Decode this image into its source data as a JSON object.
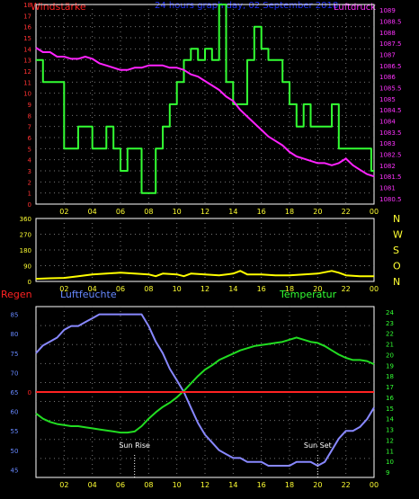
{
  "header": {
    "left_label": "Windstärke",
    "center_title": "24 hours graph day, 02 September 2018",
    "right_label": "Luftdruck"
  },
  "panel3_labels": {
    "regen": "Regen",
    "luftfeuchte": "Luftfeuchte",
    "temperatur": "Temperatur",
    "sun_rise": "Sun Rise",
    "sun_set": "Sun Set"
  },
  "colors": {
    "wind": "#33ff33",
    "pressure": "#ff22ff",
    "direction": "#ffff00",
    "humidity": "#8888ff",
    "temperature": "#22dd22",
    "rain": "#ff2222",
    "axis": "#ffffff",
    "grid": "#777777",
    "wind_ticks": "#ff3333",
    "pressure_ticks": "#ff33ff",
    "direction_ticks": "#ffff33",
    "x_ticks": "#ffff33",
    "humidity_ticks": "#6688ff",
    "temp_ticks": "#33ff33",
    "title": "#2233ff"
  },
  "chart_data": [
    {
      "type": "line",
      "x_ticks": [
        "02",
        "04",
        "06",
        "08",
        "10",
        "12",
        "14",
        "16",
        "18",
        "20",
        "22",
        "00"
      ],
      "x_range": [
        0,
        24
      ],
      "y_left": {
        "ticks": [
          "0",
          "1",
          "2",
          "3",
          "4",
          "5",
          "6",
          "7",
          "8",
          "9",
          "10",
          "11",
          "12",
          "13",
          "14",
          "15",
          "16",
          "17",
          "18"
        ],
        "range": [
          0,
          18
        ]
      },
      "y_right": {
        "ticks": [
          "1080.5",
          "1081",
          "1081.5",
          "1082",
          "1082.5",
          "1083",
          "1083.5",
          "1084",
          "1084.5",
          "1085",
          "1085.5",
          "1086",
          "1086.5",
          "1087",
          "1087.5",
          "1088",
          "1088.5",
          "1089"
        ],
        "range": [
          1080.25,
          1089.25
        ]
      },
      "series": [
        {
          "name": "Windstärke",
          "axis": "left",
          "step": true,
          "x": [
            0,
            0.5,
            2,
            3,
            4,
            5,
            5.5,
            6,
            6.5,
            7.5,
            8.5,
            9,
            9.5,
            10,
            10.5,
            11,
            11.5,
            12,
            12.5,
            13,
            13.5,
            14,
            15,
            15.5,
            16,
            16.5,
            17.5,
            18,
            18.5,
            19,
            19.5,
            20,
            21,
            21.5,
            22,
            23,
            23.8
          ],
          "y": [
            13,
            11,
            5,
            7,
            5,
            7,
            5,
            3,
            5,
            1,
            5,
            7,
            9,
            11,
            13,
            14,
            13,
            14,
            13,
            18,
            11,
            9,
            13,
            16,
            14,
            13,
            11,
            9,
            7,
            9,
            7,
            7,
            9,
            5,
            5,
            5,
            3
          ]
        },
        {
          "name": "Luftdruck",
          "axis": "right",
          "x": [
            0,
            0.5,
            1,
            1.5,
            2,
            2.5,
            3,
            3.5,
            4,
            4.5,
            5,
            5.5,
            6,
            6.5,
            7,
            7.5,
            8,
            8.5,
            9,
            9.5,
            10,
            10.5,
            11,
            11.5,
            12,
            12.5,
            13,
            13.5,
            14,
            14.5,
            15,
            15.5,
            16,
            16.5,
            17,
            17.5,
            18,
            18.5,
            19,
            19.5,
            20,
            20.5,
            21,
            21.5,
            22,
            22.5,
            23,
            23.5,
            24
          ],
          "y": [
            1087.3,
            1087.1,
            1087.1,
            1086.9,
            1086.9,
            1086.8,
            1086.8,
            1086.9,
            1086.8,
            1086.6,
            1086.5,
            1086.4,
            1086.3,
            1086.3,
            1086.4,
            1086.4,
            1086.5,
            1086.5,
            1086.5,
            1086.4,
            1086.4,
            1086.3,
            1086.1,
            1086.0,
            1085.8,
            1085.6,
            1085.4,
            1085.1,
            1084.9,
            1084.5,
            1084.2,
            1083.9,
            1083.6,
            1083.3,
            1083.1,
            1082.9,
            1082.6,
            1082.4,
            1082.3,
            1082.2,
            1082.1,
            1082.1,
            1082.0,
            1082.1,
            1082.3,
            1082.0,
            1081.8,
            1081.6,
            1081.5
          ]
        }
      ]
    },
    {
      "type": "line",
      "x_ticks": [
        "02",
        "04",
        "06",
        "08",
        "10",
        "12",
        "14",
        "16",
        "18",
        "20",
        "22",
        "00"
      ],
      "x_range": [
        0,
        24
      ],
      "y_left": {
        "ticks": [
          "0",
          "90",
          "180",
          "270",
          "360"
        ],
        "range": [
          0,
          360
        ]
      },
      "y_right_labels": [
        "N",
        "W",
        "S",
        "O",
        "N"
      ],
      "series": [
        {
          "name": "Windrichtung",
          "axis": "left",
          "x": [
            0,
            1,
            2,
            3,
            4,
            5,
            6,
            7,
            8,
            8.5,
            9,
            10,
            10.5,
            11,
            12,
            13,
            14,
            14.5,
            15,
            16,
            17,
            18,
            19,
            20,
            21,
            21.5,
            22,
            23,
            24
          ],
          "y": [
            15,
            18,
            20,
            30,
            40,
            45,
            50,
            45,
            40,
            30,
            45,
            40,
            30,
            45,
            40,
            35,
            45,
            60,
            40,
            40,
            35,
            35,
            40,
            45,
            60,
            50,
            35,
            30,
            30
          ]
        }
      ]
    },
    {
      "type": "line",
      "x_ticks": [
        "02",
        "04",
        "06",
        "08",
        "10",
        "12",
        "14",
        "16",
        "18",
        "20",
        "22",
        "00"
      ],
      "x_range": [
        0,
        24
      ],
      "y_left": {
        "ticks": [
          "45",
          "50",
          "55",
          "60",
          "65",
          "70",
          "75",
          "80",
          "85"
        ],
        "range": [
          43,
          87
        ]
      },
      "rain_axis": {
        "ticks": [
          "0"
        ],
        "value": 0
      },
      "y_right": {
        "ticks": [
          "9",
          "10",
          "11",
          "12",
          "13",
          "14",
          "15",
          "16",
          "17",
          "18",
          "19",
          "20",
          "21",
          "22",
          "23",
          "24"
        ],
        "range": [
          8.5,
          24.5
        ]
      },
      "series": [
        {
          "name": "Luftfeuchte",
          "axis": "left",
          "x": [
            0,
            0.5,
            1,
            1.5,
            2,
            2.5,
            3,
            3.5,
            4,
            4.5,
            5,
            5.5,
            6,
            6.5,
            7,
            7.5,
            8,
            8.5,
            9,
            9.5,
            10,
            10.5,
            11,
            11.5,
            12,
            12.5,
            13,
            13.5,
            14,
            14.5,
            15,
            15.5,
            16,
            16.5,
            17,
            17.5,
            18,
            18.5,
            19,
            19.5,
            20,
            20.5,
            21,
            21.5,
            22,
            22.5,
            23,
            23.5,
            24
          ],
          "y": [
            75,
            77,
            78,
            79,
            81,
            82,
            82,
            83,
            84,
            85,
            85,
            85,
            85,
            85,
            85,
            85,
            82,
            78,
            75,
            71,
            68,
            65,
            61,
            57,
            54,
            52,
            50,
            49,
            48,
            48,
            47,
            47,
            47,
            46,
            46,
            46,
            46,
            47,
            47,
            47,
            46,
            47,
            50,
            53,
            55,
            55,
            56,
            58,
            61
          ]
        },
        {
          "name": "Temperatur",
          "axis": "right",
          "x": [
            0,
            0.5,
            1,
            1.5,
            2,
            2.5,
            3,
            3.5,
            4,
            4.5,
            5,
            5.5,
            6,
            6.5,
            7,
            7.5,
            8,
            8.5,
            9,
            9.5,
            10,
            10.5,
            11,
            11.5,
            12,
            12.5,
            13,
            13.5,
            14,
            14.5,
            15,
            15.5,
            16,
            16.5,
            17,
            17.5,
            18,
            18.5,
            19,
            19.5,
            20,
            20.5,
            21,
            21.5,
            22,
            22.5,
            23,
            23.5,
            24
          ],
          "y": [
            14.5,
            14,
            13.7,
            13.5,
            13.4,
            13.3,
            13.3,
            13.2,
            13.1,
            13.0,
            12.9,
            12.8,
            12.7,
            12.7,
            12.8,
            13.3,
            14,
            14.6,
            15.1,
            15.5,
            16,
            16.6,
            17.3,
            18,
            18.6,
            19,
            19.5,
            19.8,
            20.1,
            20.4,
            20.6,
            20.8,
            20.9,
            21,
            21.1,
            21.2,
            21.4,
            21.6,
            21.4,
            21.2,
            21.1,
            20.8,
            20.4,
            20,
            19.7,
            19.5,
            19.5,
            19.4,
            19.1
          ]
        },
        {
          "name": "Regen",
          "axis": "rain",
          "x": [
            0,
            24
          ],
          "y": [
            0,
            0
          ]
        }
      ],
      "annotations": [
        {
          "label": "Sun Rise",
          "x": 7.0
        },
        {
          "label": "Sun Set",
          "x": 20.0
        }
      ]
    }
  ]
}
